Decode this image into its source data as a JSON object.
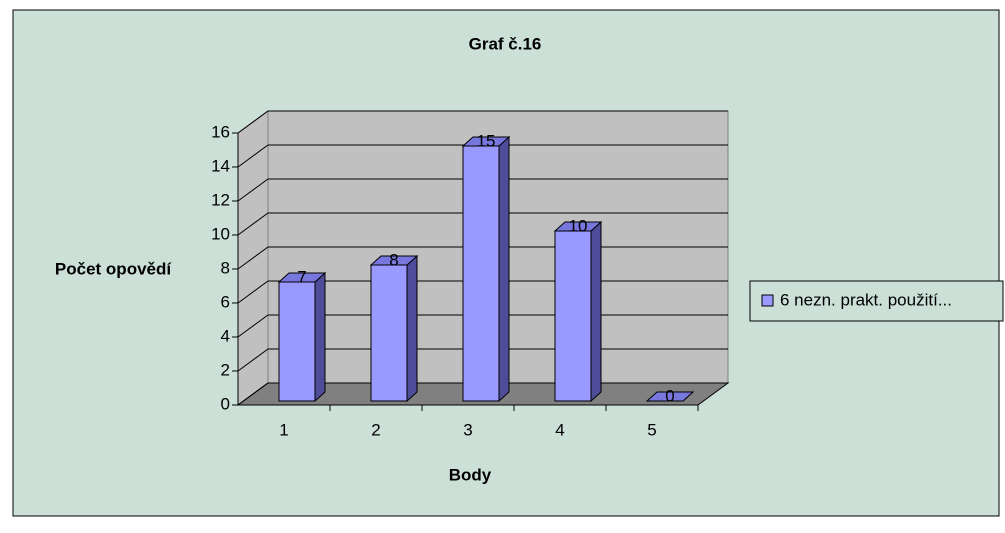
{
  "chart_data": {
    "type": "bar3d",
    "title": "Graf č.16",
    "xlabel": "Body",
    "ylabel": "Počet opovědí",
    "categories": [
      "1",
      "2",
      "3",
      "4",
      "5"
    ],
    "series": [
      {
        "name": "6 nezn. prakt. použití...",
        "color": "#9999ff",
        "values": [
          7,
          8,
          15,
          10,
          0
        ]
      }
    ],
    "ylim": [
      0,
      16
    ],
    "yticks": [
      0,
      2,
      4,
      6,
      8,
      10,
      12,
      14,
      16
    ],
    "grid": true,
    "legend": "right"
  }
}
